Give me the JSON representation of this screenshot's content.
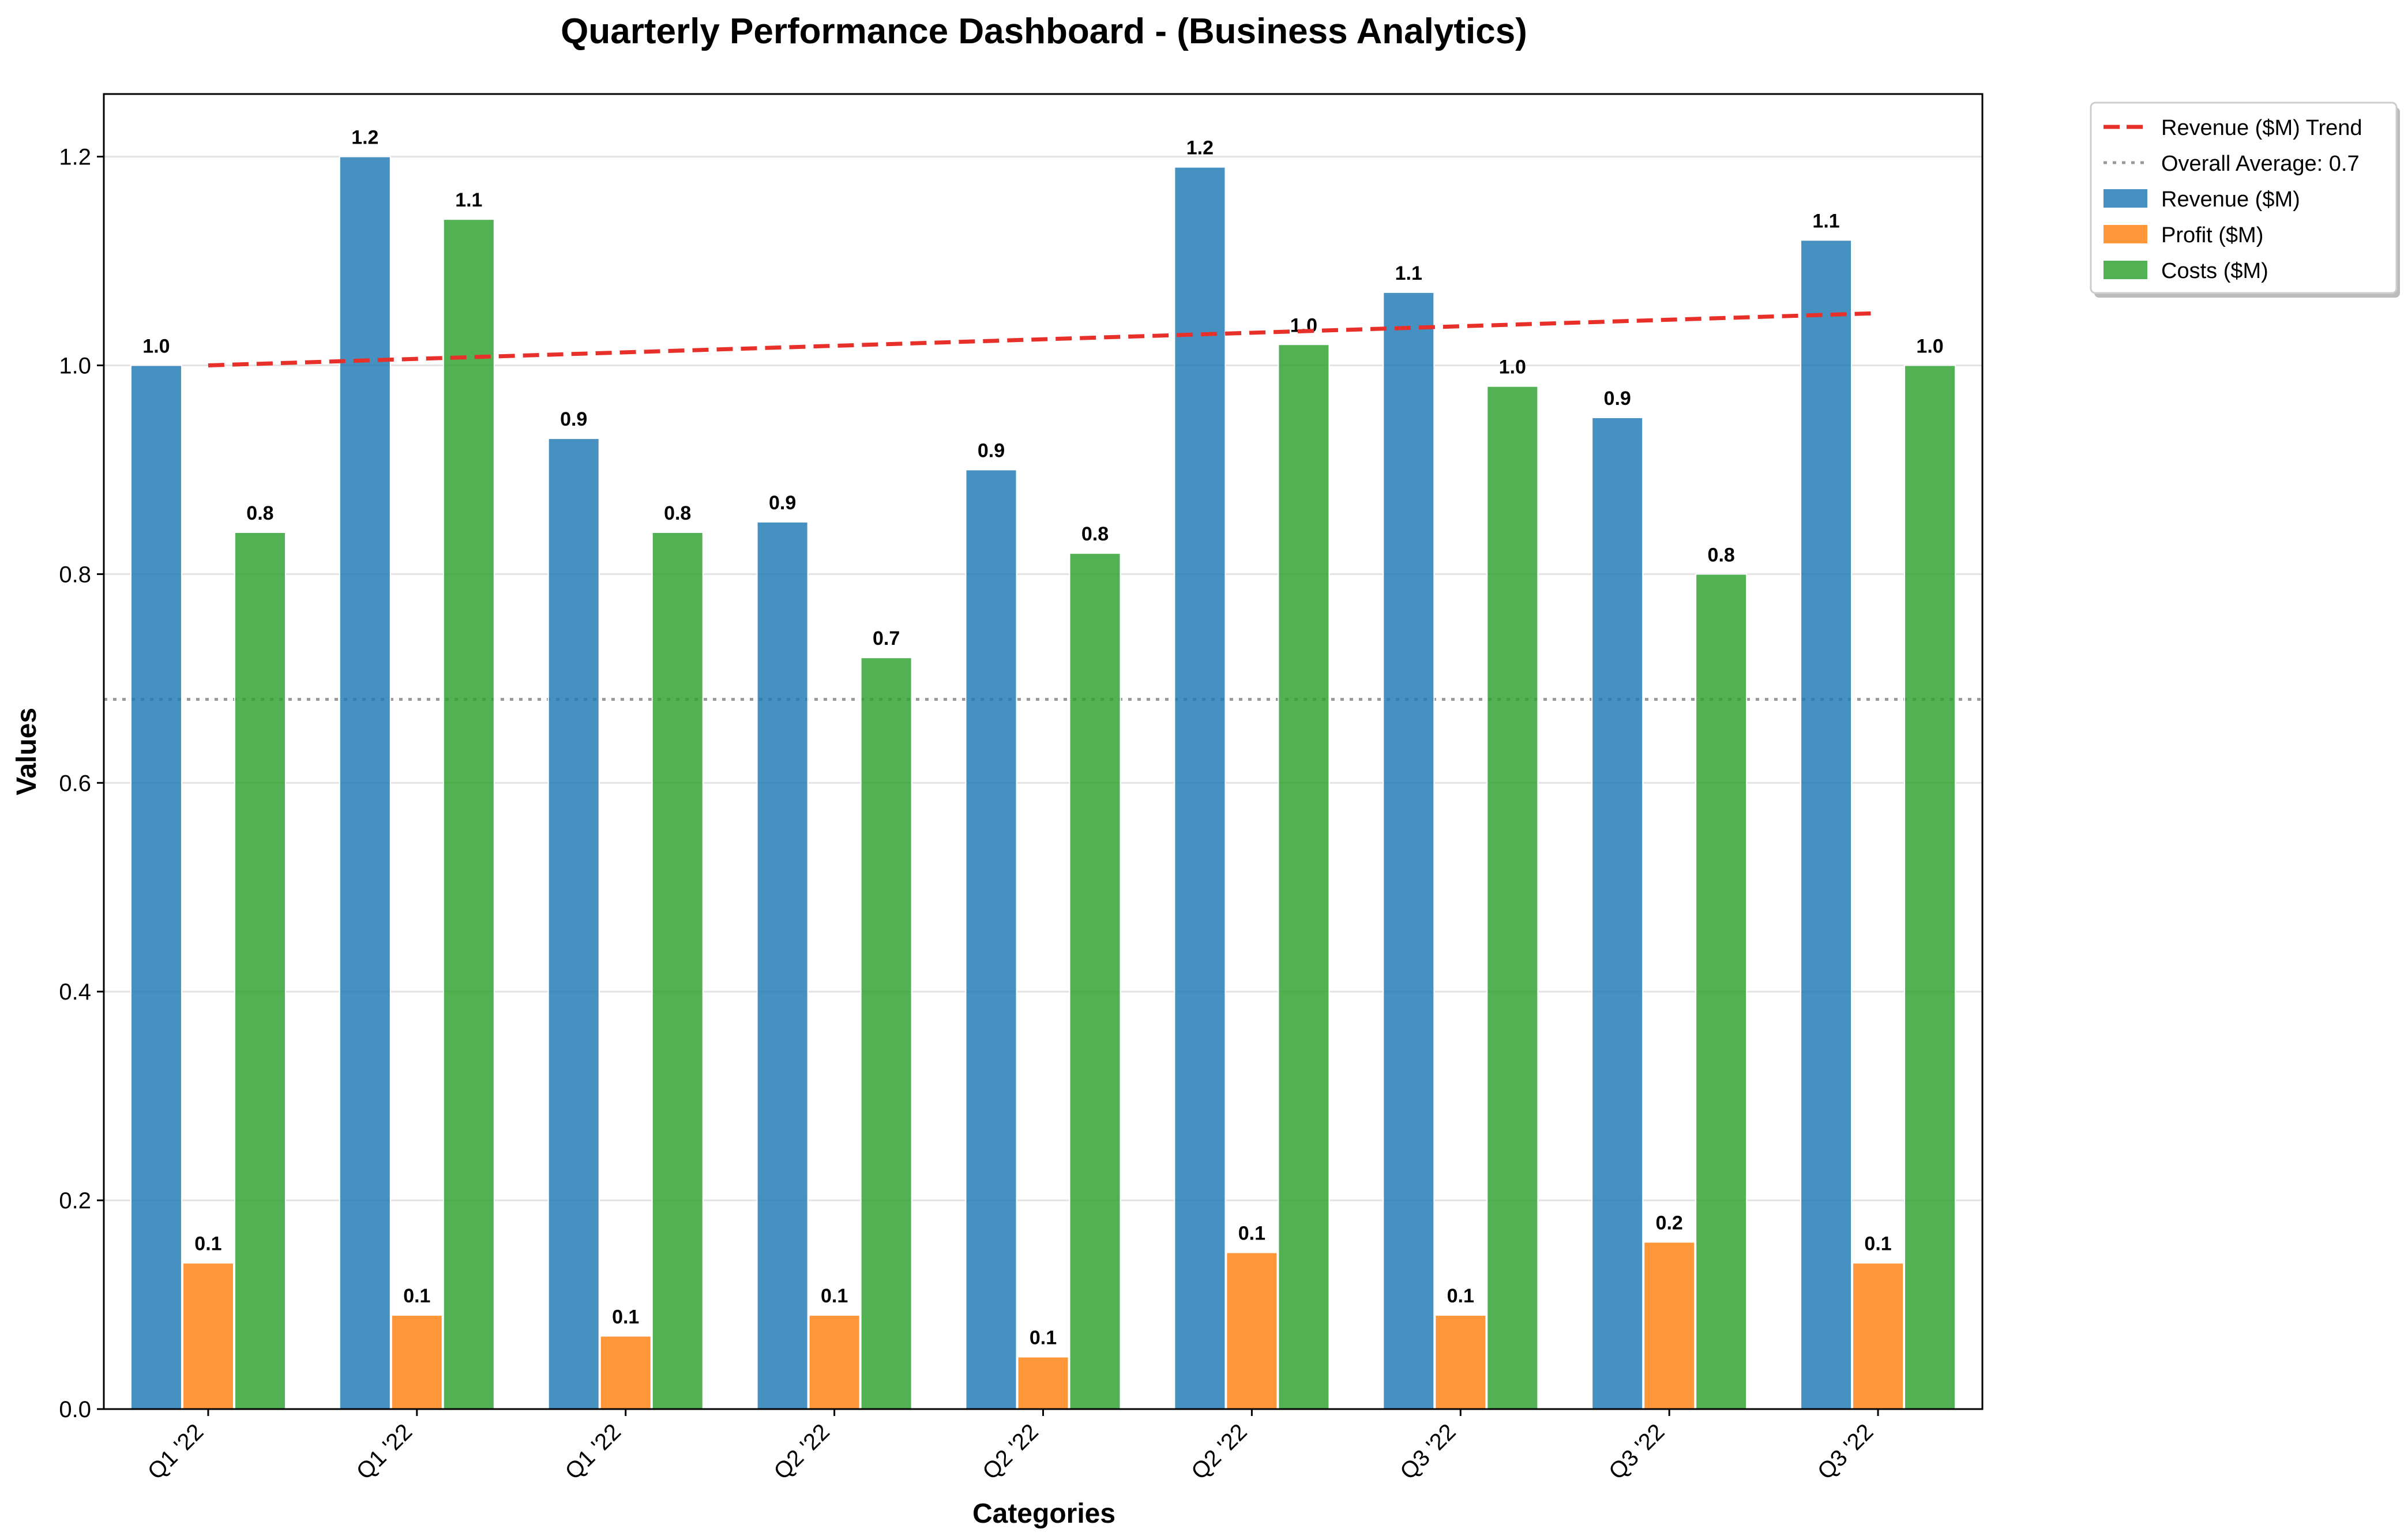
{
  "chart_data": {
    "type": "bar",
    "title": "Quarterly Performance Dashboard - (Business Analytics)",
    "xlabel": "Categories",
    "ylabel": "Values",
    "categories": [
      "Q1 '22",
      "Q1 '22",
      "Q1 '22",
      "Q2 '22",
      "Q2 '22",
      "Q2 '22",
      "Q3 '22",
      "Q3 '22",
      "Q3 '22"
    ],
    "ylim": [
      0,
      1.26
    ],
    "yticks": [
      "0.0",
      "0.2",
      "0.4",
      "0.6",
      "0.8",
      "1.0",
      "1.2"
    ],
    "grid": "horizontal",
    "legend_position": "top-right",
    "series": [
      {
        "name": "Revenue ($M)",
        "color": "#1f77b4",
        "values": [
          1.0,
          1.2,
          0.93,
          0.85,
          0.9,
          1.19,
          1.07,
          0.95,
          1.12
        ],
        "labels": [
          "1.0",
          "1.2",
          "0.9",
          "0.9",
          "0.9",
          "1.2",
          "1.1",
          "0.9",
          "1.1"
        ]
      },
      {
        "name": "Profit ($M)",
        "color": "#ff7f0e",
        "values": [
          0.14,
          0.09,
          0.07,
          0.09,
          0.05,
          0.15,
          0.09,
          0.16,
          0.14
        ],
        "labels": [
          "0.1",
          "0.1",
          "0.1",
          "0.1",
          "0.1",
          "0.1",
          "0.1",
          "0.2",
          "0.1"
        ]
      },
      {
        "name": "Costs ($M)",
        "color": "#2ca02c",
        "values": [
          0.84,
          1.14,
          0.84,
          0.72,
          0.82,
          1.02,
          0.98,
          0.8,
          1.0
        ],
        "labels": [
          "0.8",
          "1.1",
          "0.8",
          "0.7",
          "0.8",
          "1.0",
          "1.0",
          "0.8",
          "1.0"
        ]
      }
    ],
    "trend_line": {
      "name": "Revenue ($M) Trend",
      "color": "#e8302a",
      "start": 1.0,
      "end": 1.05
    },
    "average_line": {
      "name": "Overall Average: 0.7",
      "color": "#999999",
      "value": 0.68
    }
  }
}
